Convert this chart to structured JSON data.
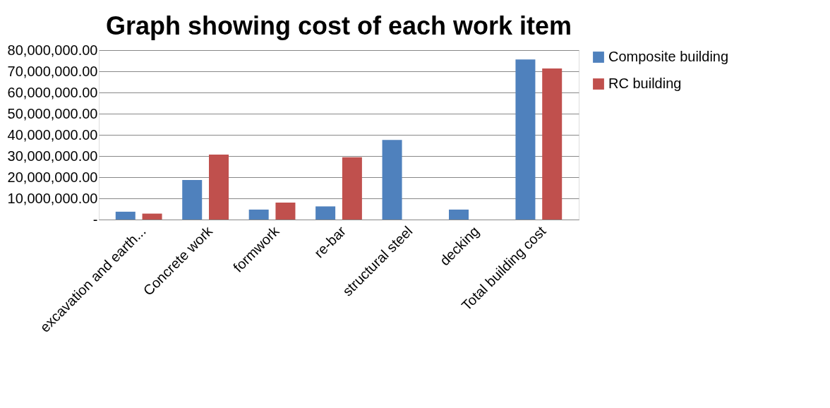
{
  "chart_data": {
    "type": "bar",
    "title": "Graph showing cost of each work item",
    "categories": [
      "excavation and earth...",
      "Concrete work",
      "formwork",
      "re-bar",
      "structural steel",
      "decking",
      "Total building cost"
    ],
    "series": [
      {
        "name": "Composite building",
        "color": "#4f81bd",
        "values": [
          3700000,
          18700000,
          4700000,
          6200000,
          37600000,
          4700000,
          75600000
        ]
      },
      {
        "name": "RC building",
        "color": "#c0504d",
        "values": [
          2800000,
          30700000,
          8000000,
          29400000,
          null,
          null,
          71300000
        ]
      }
    ],
    "ylim": [
      0,
      80000000
    ],
    "yticks": [
      {
        "value": 0,
        "label": "-"
      },
      {
        "value": 10000000,
        "label": "10,000,000.00"
      },
      {
        "value": 20000000,
        "label": "20,000,000.00"
      },
      {
        "value": 30000000,
        "label": "30,000,000.00"
      },
      {
        "value": 40000000,
        "label": "40,000,000.00"
      },
      {
        "value": 50000000,
        "label": "50,000,000.00"
      },
      {
        "value": 60000000,
        "label": "60,000,000.00"
      },
      {
        "value": 70000000,
        "label": "70,000,000.00"
      },
      {
        "value": 80000000,
        "label": "80,000,000.00"
      }
    ],
    "grid": "y",
    "legend": "right"
  }
}
